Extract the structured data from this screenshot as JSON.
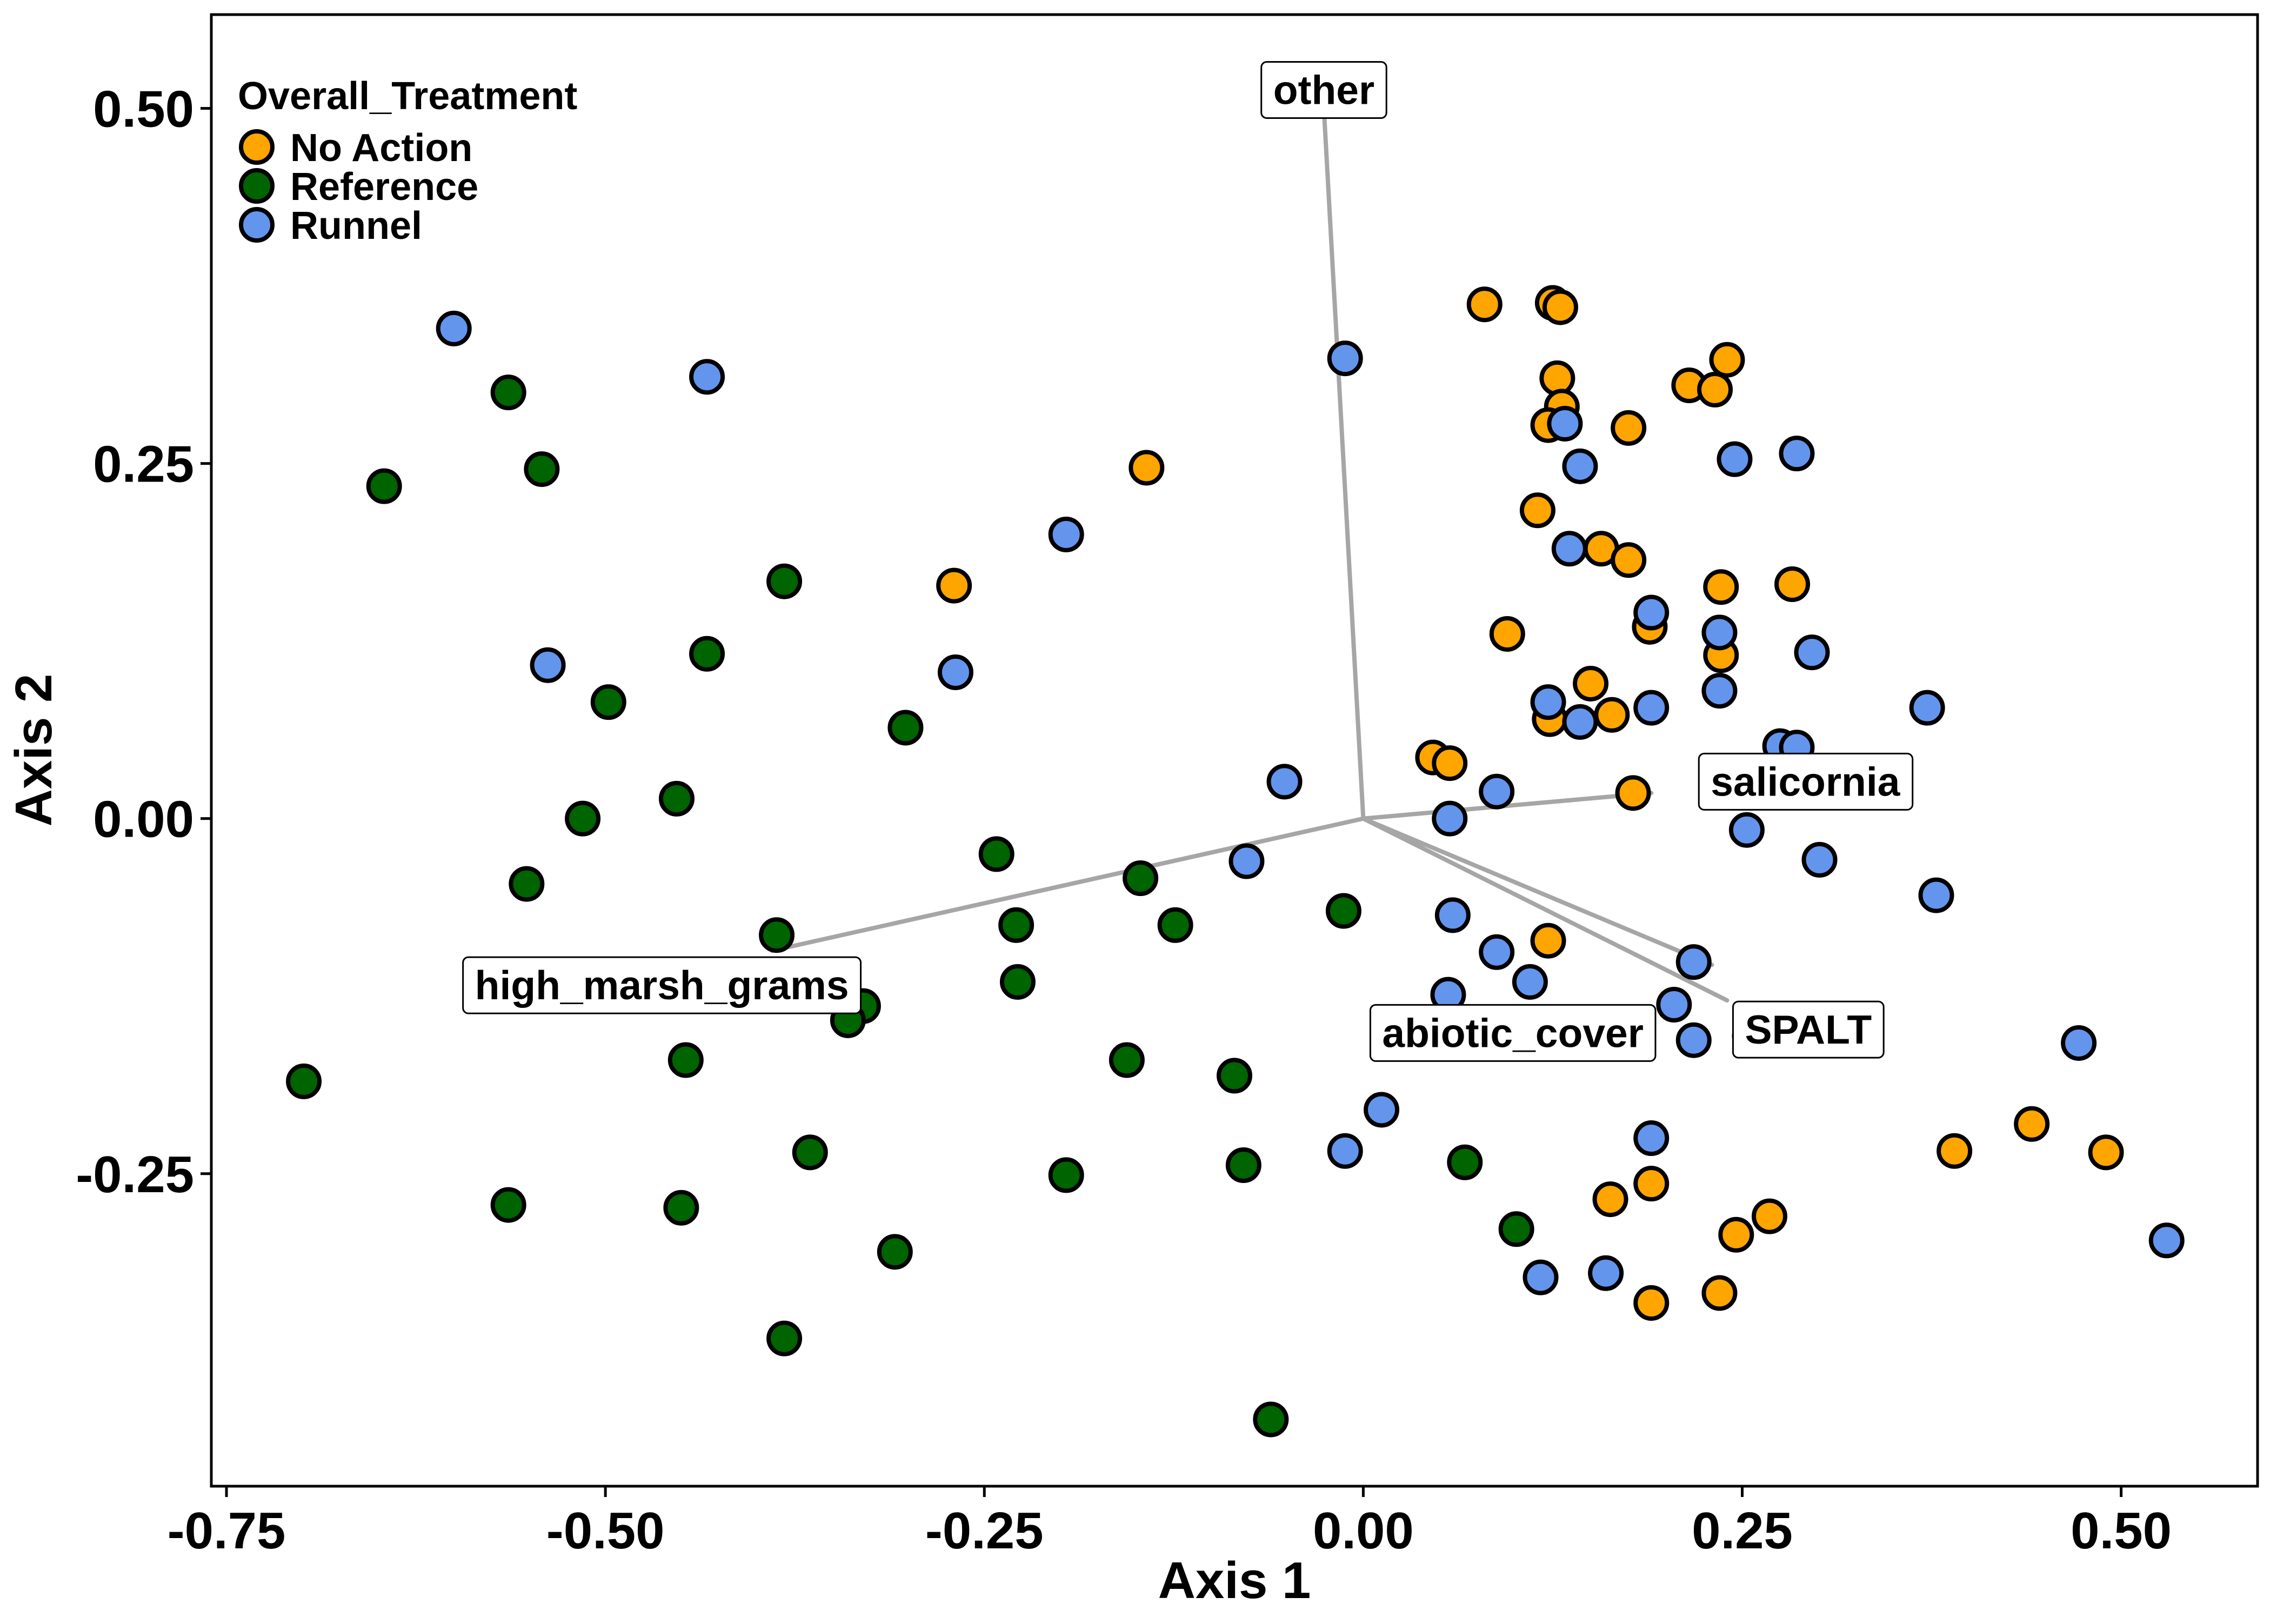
{
  "chart_data": {
    "type": "scatter",
    "xlabel": "Axis 1",
    "ylabel": "Axis 2",
    "xlim": [
      -0.76,
      0.59
    ],
    "ylim": [
      -0.47,
      0.566
    ],
    "x_ticks": [
      -0.75,
      -0.5,
      -0.25,
      0.0,
      0.25,
      0.5
    ],
    "x_tick_labels": [
      "-0.75",
      "-0.50",
      "-0.25",
      "0.00",
      "0.25",
      "0.50"
    ],
    "y_ticks": [
      -0.25,
      0.0,
      0.25,
      0.5
    ],
    "y_tick_labels": [
      "-0.25",
      "0.00",
      "0.25",
      "0.50"
    ],
    "grid": false,
    "legend": {
      "title": "Overall_Treatment",
      "placement": "top-left"
    },
    "series": [
      {
        "name": "No Action",
        "color": "#FFA500",
        "points": [
          [
            -0.143,
            0.247
          ],
          [
            -0.27,
            0.164
          ],
          [
            0.08,
            0.362
          ],
          [
            0.125,
            0.363
          ],
          [
            0.13,
            0.36
          ],
          [
            0.128,
            0.31
          ],
          [
            0.131,
            0.29
          ],
          [
            0.122,
            0.277
          ],
          [
            0.175,
            0.275
          ],
          [
            0.215,
            0.305
          ],
          [
            0.232,
            0.302
          ],
          [
            0.24,
            0.323
          ],
          [
            0.115,
            0.217
          ],
          [
            0.157,
            0.19
          ],
          [
            0.175,
            0.182
          ],
          [
            0.236,
            0.163
          ],
          [
            0.283,
            0.165
          ],
          [
            0.095,
            0.13
          ],
          [
            0.189,
            0.135
          ],
          [
            0.236,
            0.115
          ],
          [
            0.15,
            0.095
          ],
          [
            0.123,
            0.07
          ],
          [
            0.164,
            0.073
          ],
          [
            0.046,
            0.043
          ],
          [
            0.057,
            0.039
          ],
          [
            0.178,
            0.018
          ],
          [
            0.122,
            -0.086
          ],
          [
            0.39,
            -0.234
          ],
          [
            0.441,
            -0.215
          ],
          [
            0.49,
            -0.235
          ],
          [
            0.163,
            -0.268
          ],
          [
            0.19,
            -0.257
          ],
          [
            0.246,
            -0.293
          ],
          [
            0.268,
            -0.28
          ],
          [
            0.19,
            -0.341
          ],
          [
            0.235,
            -0.334
          ]
        ]
      },
      {
        "name": "Reference",
        "color": "#006400",
        "points": [
          [
            -0.564,
            0.3
          ],
          [
            -0.646,
            0.234
          ],
          [
            -0.542,
            0.246
          ],
          [
            -0.382,
            0.167
          ],
          [
            -0.433,
            0.116
          ],
          [
            -0.498,
            0.082
          ],
          [
            -0.302,
            0.064
          ],
          [
            -0.453,
            0.014
          ],
          [
            -0.515,
            0.0
          ],
          [
            -0.552,
            -0.046
          ],
          [
            -0.242,
            -0.025
          ],
          [
            -0.147,
            -0.042
          ],
          [
            -0.387,
            -0.082
          ],
          [
            -0.229,
            -0.075
          ],
          [
            -0.124,
            -0.075
          ],
          [
            -0.013,
            -0.065
          ],
          [
            -0.447,
            -0.122
          ],
          [
            -0.33,
            -0.132
          ],
          [
            -0.34,
            -0.142
          ],
          [
            -0.228,
            -0.115
          ],
          [
            -0.447,
            -0.17
          ],
          [
            -0.156,
            -0.17
          ],
          [
            -0.085,
            -0.181
          ],
          [
            -0.699,
            -0.185
          ],
          [
            -0.365,
            -0.235
          ],
          [
            -0.196,
            -0.251
          ],
          [
            -0.079,
            -0.244
          ],
          [
            0.067,
            -0.242
          ],
          [
            -0.564,
            -0.272
          ],
          [
            -0.45,
            -0.274
          ],
          [
            -0.309,
            -0.305
          ],
          [
            0.101,
            -0.289
          ],
          [
            -0.382,
            -0.366
          ],
          [
            -0.061,
            -0.423
          ]
        ]
      },
      {
        "name": "Runnel",
        "color": "#6495ED",
        "points": [
          [
            -0.6,
            0.345
          ],
          [
            -0.433,
            0.311
          ],
          [
            -0.012,
            0.324
          ],
          [
            -0.196,
            0.2
          ],
          [
            -0.538,
            0.108
          ],
          [
            -0.269,
            0.103
          ],
          [
            0.133,
            0.278
          ],
          [
            0.143,
            0.248
          ],
          [
            0.286,
            0.257
          ],
          [
            0.245,
            0.253
          ],
          [
            0.136,
            0.19
          ],
          [
            0.19,
            0.145
          ],
          [
            0.235,
            0.131
          ],
          [
            0.296,
            0.117
          ],
          [
            0.122,
            0.082
          ],
          [
            0.143,
            0.068
          ],
          [
            0.19,
            0.078
          ],
          [
            0.235,
            0.09
          ],
          [
            0.372,
            0.078
          ],
          [
            0.275,
            0.051
          ],
          [
            0.286,
            0.05
          ],
          [
            -0.052,
            0.026
          ],
          [
            0.088,
            0.019
          ],
          [
            0.057,
            0.0
          ],
          [
            0.253,
            -0.008
          ],
          [
            0.301,
            -0.029
          ],
          [
            -0.077,
            -0.03
          ],
          [
            0.059,
            -0.068
          ],
          [
            0.378,
            -0.054
          ],
          [
            0.088,
            -0.094
          ],
          [
            0.218,
            -0.101
          ],
          [
            0.11,
            -0.115
          ],
          [
            0.056,
            -0.124
          ],
          [
            0.205,
            -0.131
          ],
          [
            0.218,
            -0.156
          ],
          [
            0.255,
            -0.153
          ],
          [
            0.472,
            -0.158
          ],
          [
            0.012,
            -0.205
          ],
          [
            -0.012,
            -0.234
          ],
          [
            0.19,
            -0.225
          ],
          [
            0.117,
            -0.323
          ],
          [
            0.16,
            -0.32
          ],
          [
            0.53,
            -0.297
          ]
        ]
      }
    ],
    "vectors": [
      {
        "label": "other",
        "end": [
          -0.026,
          0.5
        ]
      },
      {
        "label": "salicornia",
        "end": [
          0.19,
          0.018
        ]
      },
      {
        "label": "abiotic_cover",
        "end": [
          0.23,
          -0.103
        ]
      },
      {
        "label": "high_marsh_grams",
        "end": [
          -0.39,
          -0.093
        ]
      },
      {
        "label": "SPALT",
        "end": [
          0.24,
          -0.128
        ]
      }
    ]
  }
}
